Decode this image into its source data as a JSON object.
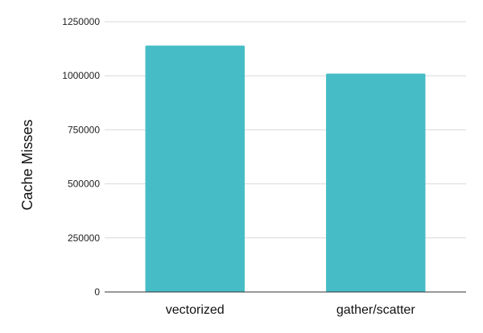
{
  "chart_data": {
    "type": "bar",
    "title": "",
    "xlabel": "",
    "ylabel": "Cache Misses",
    "categories": [
      "vectorized",
      "gather/scatter"
    ],
    "values": [
      1140000,
      1010000
    ],
    "ylim": [
      0,
      1250000
    ],
    "yticks": [
      0,
      250000,
      500000,
      750000,
      1000000,
      1250000
    ],
    "ytick_labels": [
      "0",
      "250000",
      "500000",
      "750000",
      "1000000",
      "1250000"
    ],
    "grid": true,
    "legend": "none",
    "bar_color": "#46bdc6"
  }
}
